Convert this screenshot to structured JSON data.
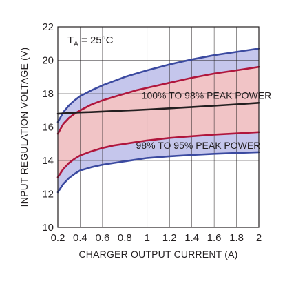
{
  "chart_data": {
    "type": "line",
    "xlabel": "CHARGER OUTPUT CURRENT (A)",
    "ylabel": "INPUT REGULATION VOLTAGE (V)",
    "xlim": [
      0.2,
      2.0
    ],
    "ylim": [
      10,
      22
    ],
    "x_ticks": [
      0.2,
      0.4,
      0.6,
      0.8,
      1.0,
      1.2,
      1.4,
      1.6,
      1.8,
      2.0
    ],
    "x_tick_labels": [
      "0.2",
      "0.4",
      "0.6",
      "0.8",
      "1",
      "1.2",
      "1.4",
      "1.6",
      "1.8",
      "2"
    ],
    "y_ticks": [
      10,
      12,
      14,
      16,
      18,
      20,
      22
    ],
    "y_tick_labels": [
      "10",
      "12",
      "14",
      "16",
      "18",
      "20",
      "22"
    ],
    "grid": true,
    "condition": {
      "prefix": "T",
      "subscript": "A",
      "suffix": " = 25°C"
    },
    "x": [
      0.2,
      0.25,
      0.3,
      0.35,
      0.4,
      0.5,
      0.6,
      0.7,
      0.8,
      0.9,
      1.0,
      1.2,
      1.4,
      1.6,
      1.8,
      2.0
    ],
    "series": [
      {
        "color": "#3b4aa0",
        "values": [
          16.3,
          16.9,
          17.3,
          17.6,
          17.85,
          18.2,
          18.5,
          18.75,
          19.0,
          19.2,
          19.4,
          19.75,
          20.05,
          20.3,
          20.5,
          20.7
        ]
      },
      {
        "color": "#b0163c",
        "values": [
          15.6,
          16.2,
          16.55,
          16.8,
          17.0,
          17.35,
          17.6,
          17.8,
          18.0,
          18.2,
          18.35,
          18.65,
          18.95,
          19.2,
          19.4,
          19.6
        ]
      },
      {
        "color": "#231f20",
        "values": [
          16.8,
          16.82,
          16.84,
          16.86,
          16.88,
          16.9,
          16.93,
          16.96,
          16.99,
          17.02,
          17.05,
          17.12,
          17.2,
          17.28,
          17.36,
          17.45
        ]
      },
      {
        "color": "#b0163c",
        "values": [
          13.0,
          13.5,
          13.85,
          14.1,
          14.3,
          14.55,
          14.75,
          14.9,
          15.0,
          15.1,
          15.2,
          15.35,
          15.45,
          15.55,
          15.62,
          15.7
        ]
      },
      {
        "color": "#3b4aa0",
        "values": [
          12.1,
          12.6,
          12.95,
          13.2,
          13.4,
          13.6,
          13.75,
          13.85,
          13.95,
          14.05,
          14.15,
          14.25,
          14.33,
          14.4,
          14.45,
          14.5
        ]
      }
    ],
    "bands": [
      {
        "upper_series": 0,
        "lower_series": 1,
        "color": "#c5c6ec"
      },
      {
        "upper_series": 1,
        "lower_series": 3,
        "color": "#f1c4c6"
      },
      {
        "upper_series": 3,
        "lower_series": 4,
        "color": "#c5c6ec"
      }
    ],
    "annotations": [
      {
        "text": "100% TO 98% PEAK POWER",
        "x": 0.95,
        "y": 17.7
      },
      {
        "text": "98% TO 95% PEAK POWER",
        "x": 0.9,
        "y": 14.7
      }
    ]
  }
}
